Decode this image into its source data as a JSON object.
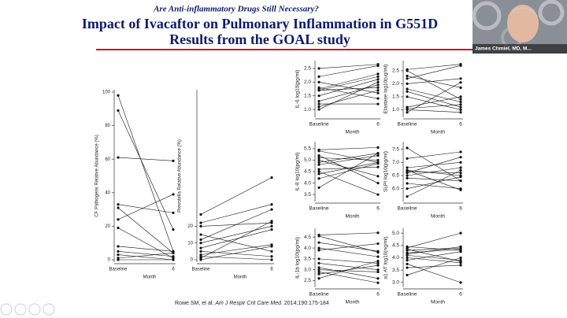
{
  "slide": {
    "kicker": "Are Anti-inflammatory Drugs Still Necessary?",
    "title_line1": "Impact of Ivacaftor on Pulmonary Inflammation in G551D",
    "title_line2": "Results from the GOAL study",
    "citation": {
      "authors": "Rowe SM, et al. ",
      "journal": "Am J Respir Crit Care Med",
      "ref": ". 2014;190:175-184"
    }
  },
  "video": {
    "name": "James Chmiel, MD, M..."
  },
  "chart_data": [
    {
      "type": "line",
      "ylabel": "CF Pathogens Relative Abundance (%)",
      "xlabel": "Month",
      "categories": [
        "Baseline",
        "6"
      ],
      "color": "#111111",
      "ylim": [
        0,
        100
      ],
      "yticks": [
        0,
        20,
        40,
        60,
        80,
        100
      ],
      "series": [
        {
          "values": [
            98,
            5
          ]
        },
        {
          "values": [
            89,
            18
          ]
        },
        {
          "values": [
            61,
            59
          ]
        },
        {
          "values": [
            33,
            28
          ]
        },
        {
          "values": [
            31,
            4
          ]
        },
        {
          "values": [
            24,
            39
          ]
        },
        {
          "values": [
            19,
            1
          ]
        },
        {
          "values": [
            8,
            5
          ]
        },
        {
          "values": [
            5,
            2
          ]
        },
        {
          "values": [
            3,
            0
          ]
        },
        {
          "values": [
            1,
            4
          ]
        },
        {
          "values": [
            0,
            0
          ]
        }
      ]
    },
    {
      "type": "line",
      "ylabel": "Prevotella Relative Abundance (%)",
      "xlabel": "Month",
      "categories": [
        "Baseline",
        "6"
      ],
      "color": "#111111",
      "ylim": [
        0,
        100
      ],
      "yticks": [
        0,
        10,
        20
      ],
      "series": [
        {
          "values": [
            27,
            49
          ]
        },
        {
          "values": [
            22,
            33
          ]
        },
        {
          "values": [
            20,
            22
          ]
        },
        {
          "values": [
            15,
            5
          ]
        },
        {
          "values": [
            12,
            30
          ]
        },
        {
          "values": [
            10,
            20
          ]
        },
        {
          "values": [
            7,
            18
          ]
        },
        {
          "values": [
            5,
            2
          ]
        },
        {
          "values": [
            3,
            9
          ]
        },
        {
          "values": [
            2,
            0
          ]
        },
        {
          "values": [
            1,
            23
          ]
        },
        {
          "values": [
            0,
            8
          ]
        }
      ]
    },
    {
      "type": "line",
      "ylabel": "IL-6 log10(pg/ml)",
      "xlabel": "Month",
      "categories": [
        "Baseline",
        "6"
      ],
      "color": "#111111",
      "ylim": [
        0.8,
        2.7
      ],
      "yticks": [
        {
          "value": 1,
          "label": "1.0"
        },
        1.5,
        {
          "value": 2,
          "label": "2.0"
        },
        2.5
      ],
      "series": [
        {
          "values": [
            2.5,
            2.65
          ]
        },
        {
          "values": [
            2.2,
            2.6
          ]
        },
        {
          "values": [
            2.0,
            1.6
          ]
        },
        {
          "values": [
            1.8,
            1.4
          ]
        },
        {
          "values": [
            1.75,
            2.3
          ]
        },
        {
          "values": [
            1.7,
            2.2
          ]
        },
        {
          "values": [
            1.7,
            1.8
          ]
        },
        {
          "values": [
            1.5,
            2.1
          ]
        },
        {
          "values": [
            1.3,
            1.9
          ]
        },
        {
          "values": [
            1.2,
            1.2
          ]
        },
        {
          "values": [
            1.1,
            1.7
          ]
        },
        {
          "values": [
            1.0,
            2.0
          ]
        }
      ]
    },
    {
      "type": "line",
      "ylabel": "Elastase log10(ug/ml)",
      "xlabel": "Month",
      "categories": [
        "Baseline",
        "6"
      ],
      "color": "#111111",
      "ylim": [
        0.8,
        2.8
      ],
      "yticks": [
        {
          "value": 1,
          "label": "1.0"
        },
        1.5,
        {
          "value": 2,
          "label": "2.0"
        },
        2.5
      ],
      "series": [
        {
          "values": [
            2.55,
            2.75
          ]
        },
        {
          "values": [
            2.5,
            1.4
          ]
        },
        {
          "values": [
            2.3,
            1.85
          ]
        },
        {
          "values": [
            2.2,
            2.7
          ]
        },
        {
          "values": [
            2.0,
            2.2
          ]
        },
        {
          "values": [
            1.8,
            1.3
          ]
        },
        {
          "values": [
            1.7,
            1.1
          ]
        },
        {
          "values": [
            1.5,
            1.0
          ]
        },
        {
          "values": [
            1.1,
            1.5
          ]
        },
        {
          "values": [
            1.05,
            1.2
          ]
        },
        {
          "values": [
            1.0,
            0.9
          ]
        },
        {
          "values": [
            0.9,
            2.05
          ]
        }
      ]
    },
    {
      "type": "line",
      "ylabel": "IL-8 log10(pg/ml)",
      "xlabel": "Month",
      "categories": [
        "Baseline",
        "6"
      ],
      "color": "#111111",
      "ylim": [
        3.3,
        5.7
      ],
      "yticks": [
        3.5,
        {
          "value": 4,
          "label": "4.0"
        },
        4.5,
        {
          "value": 5,
          "label": "5.0"
        },
        5.5
      ],
      "series": [
        {
          "values": [
            5.45,
            5.55
          ]
        },
        {
          "values": [
            5.4,
            4.9
          ]
        },
        {
          "values": [
            5.2,
            4.0
          ]
        },
        {
          "values": [
            5.1,
            5.0
          ]
        },
        {
          "values": [
            5.0,
            4.3
          ]
        },
        {
          "values": [
            4.9,
            5.3
          ]
        },
        {
          "values": [
            4.8,
            5.2
          ]
        },
        {
          "values": [
            4.6,
            4.7
          ]
        },
        {
          "values": [
            4.5,
            3.5
          ]
        },
        {
          "values": [
            4.4,
            4.9
          ]
        },
        {
          "values": [
            4.2,
            4.85
          ]
        },
        {
          "values": [
            3.8,
            5.3
          ]
        }
      ]
    },
    {
      "type": "line",
      "ylabel": "SLPI log10(pg/ml)",
      "xlabel": "Month",
      "categories": [
        "Baseline",
        "6"
      ],
      "color": "#111111",
      "ylim": [
        5.6,
        7.7
      ],
      "yticks": [
        {
          "value": 6,
          "label": "6.0"
        },
        6.5,
        {
          "value": 7,
          "label": "7.0"
        },
        7.5
      ],
      "series": [
        {
          "values": [
            7.55,
            6.3
          ]
        },
        {
          "values": [
            7.15,
            7.4
          ]
        },
        {
          "values": [
            6.8,
            7.0
          ]
        },
        {
          "values": [
            6.7,
            6.5
          ]
        },
        {
          "values": [
            6.7,
            5.95
          ]
        },
        {
          "values": [
            6.65,
            6.6
          ]
        },
        {
          "values": [
            6.6,
            7.2
          ]
        },
        {
          "values": [
            6.5,
            6.8
          ]
        },
        {
          "values": [
            6.4,
            6.3
          ]
        },
        {
          "values": [
            6.2,
            6.0
          ]
        },
        {
          "values": [
            6.0,
            6.45
          ]
        },
        {
          "values": [
            5.7,
            6.7
          ]
        }
      ]
    },
    {
      "type": "line",
      "ylabel": "IL-1b log10(pg/ml)",
      "xlabel": "Month",
      "categories": [
        "Baseline",
        "6"
      ],
      "color": "#111111",
      "ylim": [
        2.3,
        4.8
      ],
      "yticks": [
        2.5,
        {
          "value": 3,
          "label": "3.0"
        },
        3.5,
        {
          "value": 4,
          "label": "4.0"
        },
        4.5
      ],
      "series": [
        {
          "values": [
            4.6,
            4.7
          ]
        },
        {
          "values": [
            4.55,
            3.8
          ]
        },
        {
          "values": [
            4.25,
            3.85
          ]
        },
        {
          "values": [
            4.0,
            3.6
          ]
        },
        {
          "values": [
            3.9,
            4.2
          ]
        },
        {
          "values": [
            3.5,
            3.3
          ]
        },
        {
          "values": [
            3.3,
            3.0
          ]
        },
        {
          "values": [
            3.1,
            2.6
          ]
        },
        {
          "values": [
            3.0,
            2.9
          ]
        },
        {
          "values": [
            2.9,
            2.4
          ]
        },
        {
          "values": [
            2.8,
            3.2
          ]
        },
        {
          "values": [
            2.6,
            3.4
          ]
        }
      ]
    },
    {
      "type": "line",
      "ylabel": "a1 AT log10(ng/ml)",
      "xlabel": "Month",
      "categories": [
        "Baseline",
        "6"
      ],
      "color": "#111111",
      "ylim": [
        2.9,
        5.1
      ],
      "yticks": [
        {
          "value": 3,
          "label": "3.0"
        },
        3.5,
        {
          "value": 4,
          "label": "4.0"
        },
        4.5,
        {
          "value": 5,
          "label": "5.0"
        }
      ],
      "series": [
        {
          "values": [
            4.45,
            4.3
          ]
        },
        {
          "values": [
            4.4,
            5.0
          ]
        },
        {
          "values": [
            4.35,
            3.85
          ]
        },
        {
          "values": [
            4.3,
            4.4
          ]
        },
        {
          "values": [
            4.2,
            4.35
          ]
        },
        {
          "values": [
            4.15,
            4.45
          ]
        },
        {
          "values": [
            4.1,
            3.9
          ]
        },
        {
          "values": [
            4.0,
            3.8
          ]
        },
        {
          "values": [
            3.9,
            4.25
          ]
        },
        {
          "values": [
            3.75,
            3.0
          ]
        },
        {
          "values": [
            3.6,
            3.7
          ]
        },
        {
          "values": [
            3.3,
            4.0
          ]
        }
      ]
    }
  ]
}
